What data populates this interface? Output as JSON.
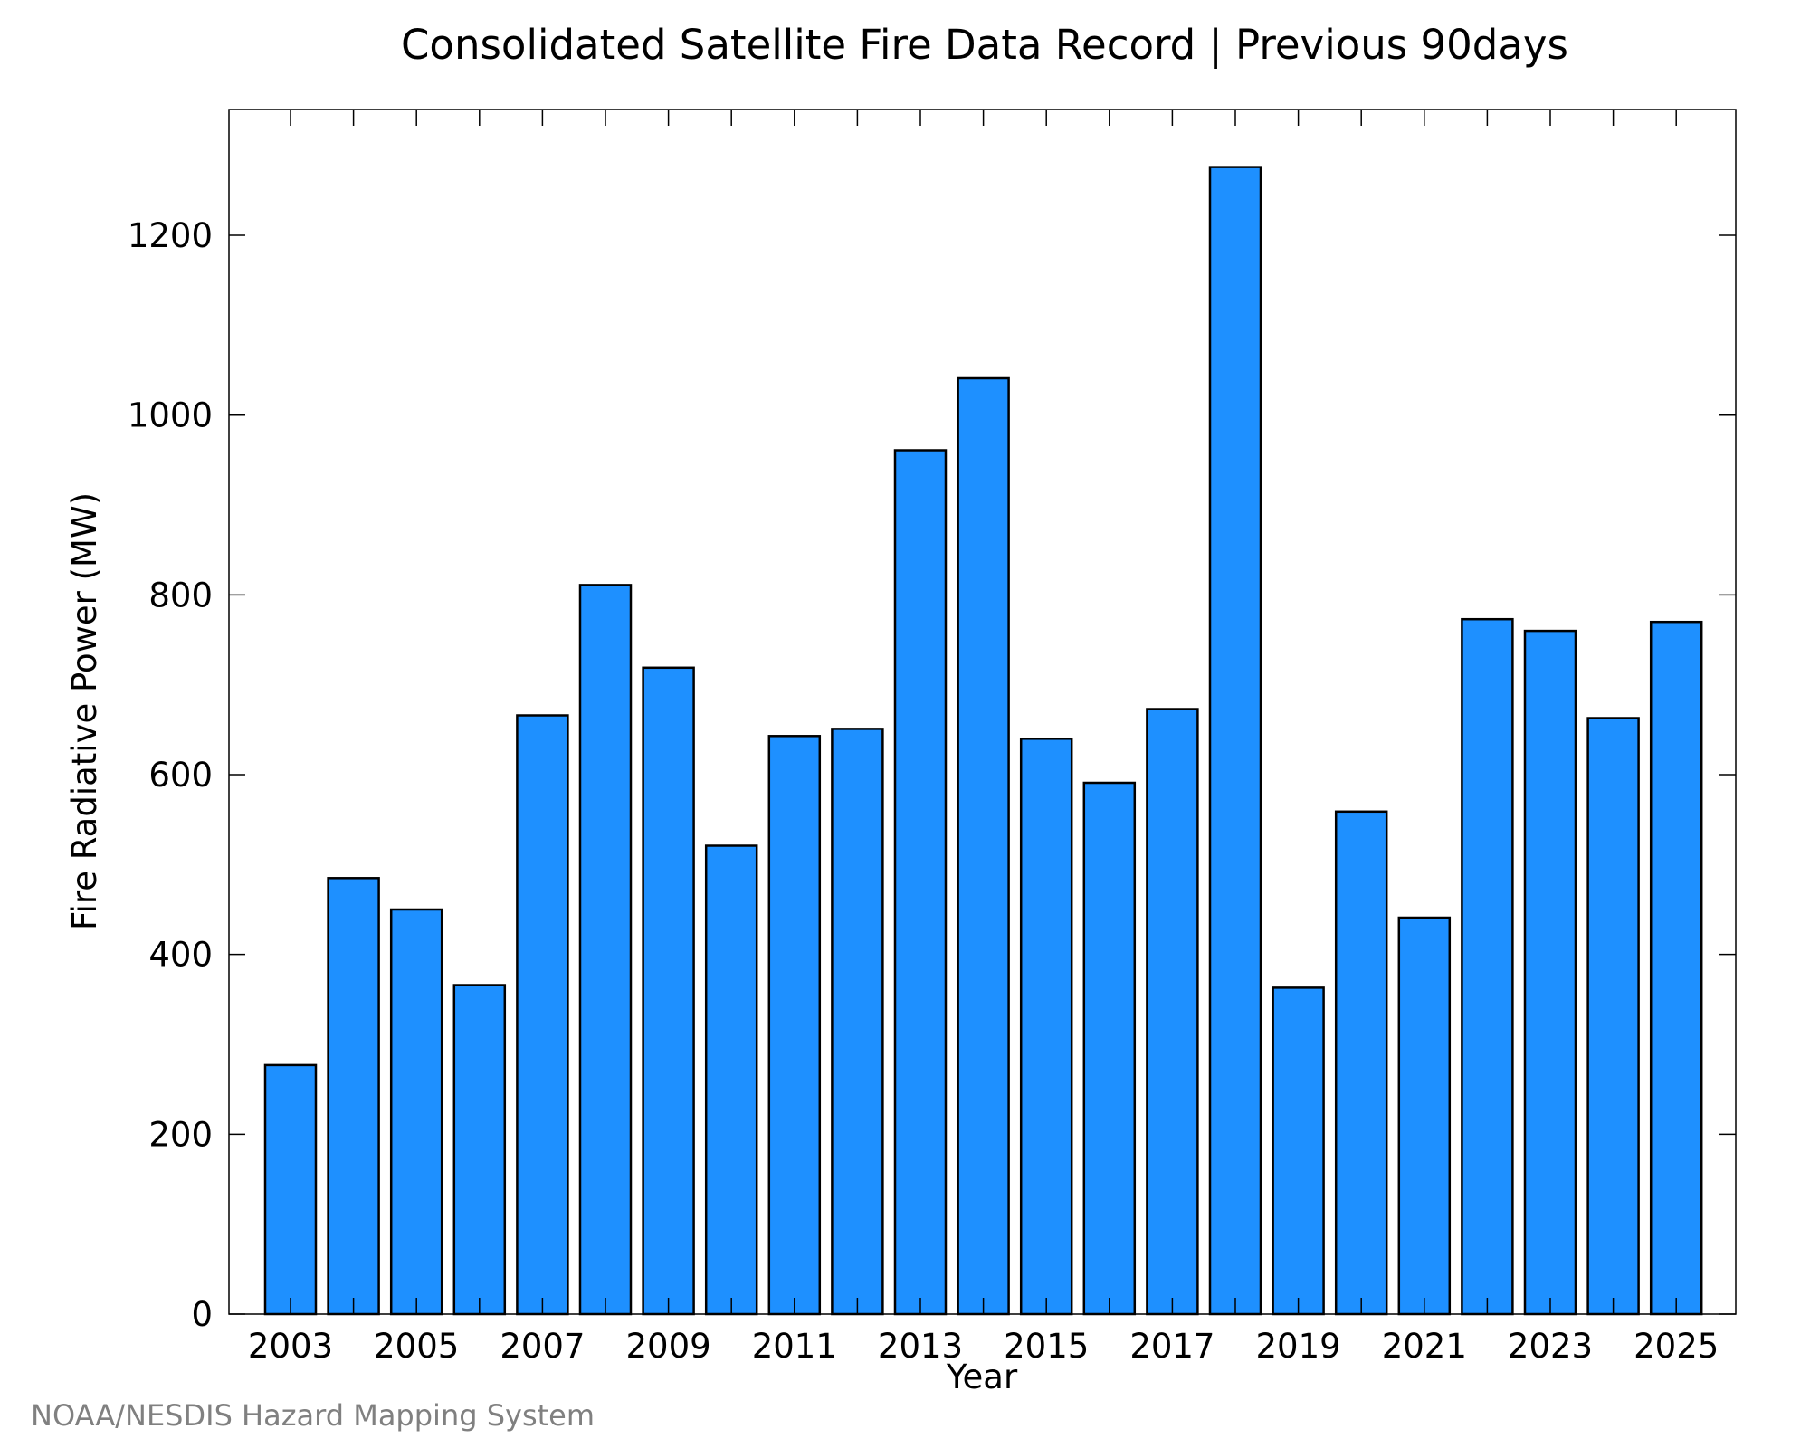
{
  "chart_data": {
    "type": "bar",
    "title": "Consolidated Satellite Fire Data Record | Previous 90days",
    "xlabel": "Year",
    "ylabel": "Fire Radiative Power (MW)",
    "categories": [
      "2003",
      "2004",
      "2005",
      "2006",
      "2007",
      "2008",
      "2009",
      "2010",
      "2011",
      "2012",
      "2013",
      "2014",
      "2015",
      "2016",
      "2017",
      "2018",
      "2019",
      "2020",
      "2021",
      "2022",
      "2023",
      "2024",
      "2025"
    ],
    "x_tick_labels": [
      "2003",
      "2005",
      "2007",
      "2009",
      "2011",
      "2013",
      "2015",
      "2017",
      "2019",
      "2021",
      "2023",
      "2025"
    ],
    "values": [
      277,
      485,
      450,
      366,
      666,
      811,
      719,
      521,
      643,
      651,
      961,
      1041,
      640,
      591,
      673,
      1276,
      363,
      559,
      441,
      773,
      760,
      663,
      770
    ],
    "ylim": [
      0,
      1340
    ],
    "y_ticks": [
      0,
      200,
      400,
      600,
      800,
      1000,
      1200
    ],
    "grid": false,
    "bar_color": "#1e90ff",
    "bar_edge_color": "#000000"
  },
  "footer": {
    "credit": "NOAA/NESDIS Hazard Mapping System"
  }
}
